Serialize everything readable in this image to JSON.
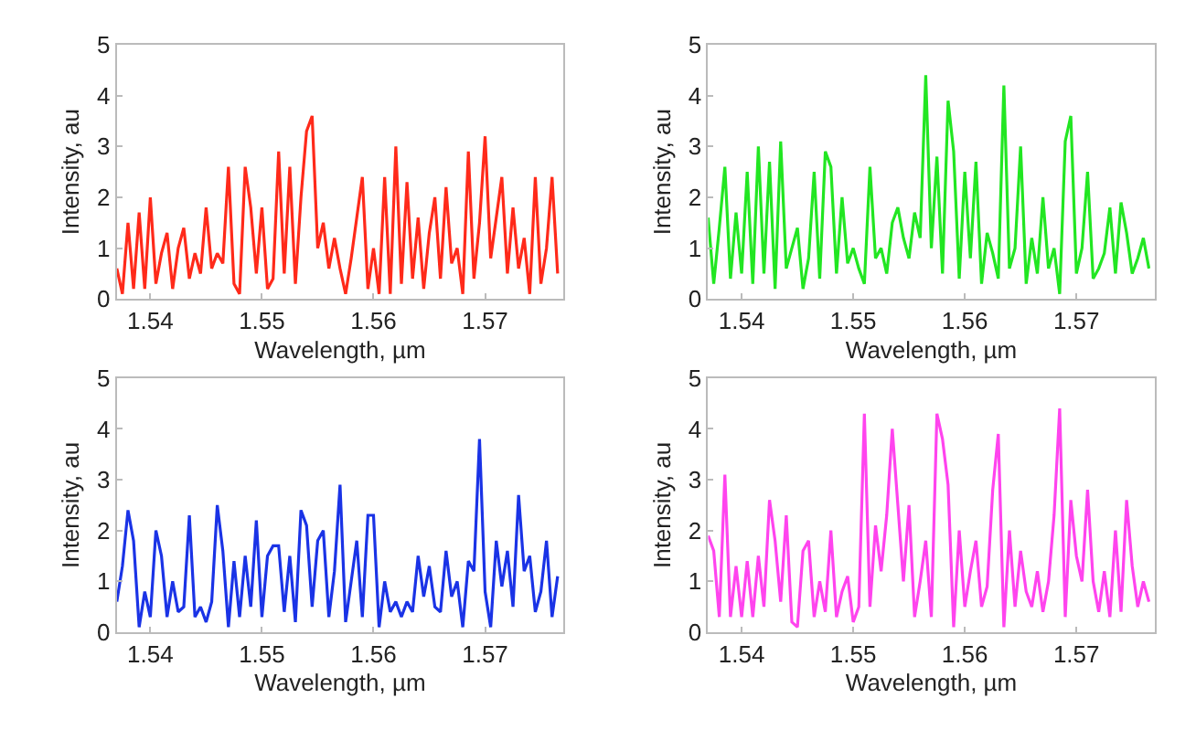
{
  "chart_data": [
    {
      "type": "line",
      "xlabel": "Wavelength, µm",
      "ylabel": "Intensity, au",
      "xlim": [
        1.537,
        1.577
      ],
      "xticks": [
        1.54,
        1.55,
        1.56,
        1.57
      ],
      "ylim": [
        0,
        5
      ],
      "yticks": [
        0,
        1,
        2,
        3,
        4,
        5
      ],
      "x": [
        1.537,
        1.5375,
        1.538,
        1.5385,
        1.539,
        1.5395,
        1.54,
        1.5405,
        1.541,
        1.5415,
        1.542,
        1.5425,
        1.543,
        1.5435,
        1.544,
        1.5445,
        1.545,
        1.5455,
        1.546,
        1.5465,
        1.547,
        1.5475,
        1.548,
        1.5485,
        1.549,
        1.5495,
        1.55,
        1.5505,
        1.551,
        1.5515,
        1.552,
        1.5525,
        1.553,
        1.5535,
        1.554,
        1.5545,
        1.555,
        1.5555,
        1.556,
        1.5565,
        1.557,
        1.5575,
        1.558,
        1.5585,
        1.559,
        1.5595,
        1.56,
        1.5605,
        1.561,
        1.5615,
        1.562,
        1.5625,
        1.563,
        1.5635,
        1.564,
        1.5645,
        1.565,
        1.5655,
        1.566,
        1.5665,
        1.567,
        1.5675,
        1.568,
        1.5685,
        1.569,
        1.5695,
        1.57,
        1.5705,
        1.571,
        1.5715,
        1.572,
        1.5725,
        1.573,
        1.5735,
        1.574,
        1.5745,
        1.575,
        1.5755,
        1.576,
        1.5765
      ],
      "series": [
        {
          "color": "#ff2a1a",
          "values": [
            0.6,
            0.1,
            1.5,
            0.2,
            1.7,
            0.2,
            2.0,
            0.3,
            0.9,
            1.3,
            0.2,
            1.0,
            1.4,
            0.4,
            0.9,
            0.5,
            1.8,
            0.6,
            0.9,
            0.7,
            2.6,
            0.3,
            0.1,
            2.6,
            1.8,
            0.5,
            1.8,
            0.2,
            0.4,
            2.9,
            0.5,
            2.6,
            0.3,
            2.0,
            3.3,
            3.6,
            1.0,
            1.5,
            0.6,
            1.2,
            0.6,
            0.1,
            0.8,
            1.6,
            2.4,
            0.2,
            1.0,
            0.1,
            2.4,
            0.1,
            3.0,
            0.3,
            2.3,
            0.4,
            1.6,
            0.2,
            1.3,
            2.0,
            0.4,
            2.2,
            0.7,
            1.0,
            0.1,
            2.9,
            0.4,
            1.5,
            3.2,
            0.8,
            1.6,
            2.4,
            0.5,
            1.8,
            0.6,
            1.2,
            0.1,
            2.4,
            0.3,
            1.0,
            2.4,
            0.5
          ]
        }
      ]
    },
    {
      "type": "line",
      "xlabel": "Wavelength, µm",
      "ylabel": "Intensity, au",
      "xlim": [
        1.537,
        1.577
      ],
      "xticks": [
        1.54,
        1.55,
        1.56,
        1.57
      ],
      "ylim": [
        0,
        5
      ],
      "yticks": [
        0,
        1,
        2,
        3,
        4,
        5
      ],
      "x": [
        1.537,
        1.5375,
        1.538,
        1.5385,
        1.539,
        1.5395,
        1.54,
        1.5405,
        1.541,
        1.5415,
        1.542,
        1.5425,
        1.543,
        1.5435,
        1.544,
        1.5445,
        1.545,
        1.5455,
        1.546,
        1.5465,
        1.547,
        1.5475,
        1.548,
        1.5485,
        1.549,
        1.5495,
        1.55,
        1.5505,
        1.551,
        1.5515,
        1.552,
        1.5525,
        1.553,
        1.5535,
        1.554,
        1.5545,
        1.555,
        1.5555,
        1.556,
        1.5565,
        1.557,
        1.5575,
        1.558,
        1.5585,
        1.559,
        1.5595,
        1.56,
        1.5605,
        1.561,
        1.5615,
        1.562,
        1.5625,
        1.563,
        1.5635,
        1.564,
        1.5645,
        1.565,
        1.5655,
        1.566,
        1.5665,
        1.567,
        1.5675,
        1.568,
        1.5685,
        1.569,
        1.5695,
        1.57,
        1.5705,
        1.571,
        1.5715,
        1.572,
        1.5725,
        1.573,
        1.5735,
        1.574,
        1.5745,
        1.575,
        1.5755,
        1.576,
        1.5765
      ],
      "series": [
        {
          "color": "#22e622",
          "values": [
            1.6,
            0.3,
            1.4,
            2.6,
            0.4,
            1.7,
            0.5,
            2.5,
            0.3,
            3.0,
            0.5,
            2.7,
            0.2,
            3.1,
            0.6,
            1.0,
            1.4,
            0.2,
            0.8,
            2.5,
            0.4,
            2.9,
            2.6,
            0.5,
            2.0,
            0.7,
            1.0,
            0.6,
            0.3,
            2.6,
            0.8,
            1.0,
            0.5,
            1.5,
            1.8,
            1.2,
            0.8,
            1.7,
            1.2,
            4.4,
            1.0,
            2.8,
            0.5,
            3.9,
            2.9,
            0.4,
            2.5,
            0.8,
            2.7,
            0.3,
            1.3,
            0.9,
            0.4,
            4.2,
            0.6,
            1.0,
            3.0,
            0.3,
            1.2,
            0.5,
            2.0,
            0.6,
            1.0,
            0.1,
            3.1,
            3.6,
            0.5,
            1.0,
            2.5,
            0.4,
            0.6,
            0.9,
            1.8,
            0.5,
            1.9,
            1.3,
            0.5,
            0.8,
            1.2,
            0.6
          ]
        }
      ]
    },
    {
      "type": "line",
      "xlabel": "Wavelength, µm",
      "ylabel": "Intensity, au",
      "xlim": [
        1.537,
        1.577
      ],
      "xticks": [
        1.54,
        1.55,
        1.56,
        1.57
      ],
      "ylim": [
        0,
        5
      ],
      "yticks": [
        0,
        1,
        2,
        3,
        4,
        5
      ],
      "x": [
        1.537,
        1.5375,
        1.538,
        1.5385,
        1.539,
        1.5395,
        1.54,
        1.5405,
        1.541,
        1.5415,
        1.542,
        1.5425,
        1.543,
        1.5435,
        1.544,
        1.5445,
        1.545,
        1.5455,
        1.546,
        1.5465,
        1.547,
        1.5475,
        1.548,
        1.5485,
        1.549,
        1.5495,
        1.55,
        1.5505,
        1.551,
        1.5515,
        1.552,
        1.5525,
        1.553,
        1.5535,
        1.554,
        1.5545,
        1.555,
        1.5555,
        1.556,
        1.5565,
        1.557,
        1.5575,
        1.558,
        1.5585,
        1.559,
        1.5595,
        1.56,
        1.5605,
        1.561,
        1.5615,
        1.562,
        1.5625,
        1.563,
        1.5635,
        1.564,
        1.5645,
        1.565,
        1.5655,
        1.566,
        1.5665,
        1.567,
        1.5675,
        1.568,
        1.5685,
        1.569,
        1.5695,
        1.57,
        1.5705,
        1.571,
        1.5715,
        1.572,
        1.5725,
        1.573,
        1.5735,
        1.574,
        1.5745,
        1.575,
        1.5755,
        1.576,
        1.5765
      ],
      "series": [
        {
          "color": "#1a33e6",
          "values": [
            0.6,
            1.3,
            2.4,
            1.8,
            0.1,
            0.8,
            0.3,
            2.0,
            1.5,
            0.3,
            1.0,
            0.4,
            0.5,
            2.3,
            0.3,
            0.5,
            0.2,
            0.6,
            2.5,
            1.6,
            0.1,
            1.4,
            0.3,
            1.5,
            0.5,
            2.2,
            0.3,
            1.5,
            1.7,
            1.7,
            0.4,
            1.5,
            0.2,
            2.4,
            2.1,
            0.5,
            1.8,
            2.0,
            0.3,
            1.2,
            2.9,
            0.2,
            1.0,
            1.8,
            0.3,
            2.3,
            2.3,
            0.1,
            1.0,
            0.4,
            0.6,
            0.3,
            0.6,
            0.4,
            1.5,
            0.7,
            1.3,
            0.5,
            0.4,
            1.6,
            0.7,
            1.0,
            0.1,
            1.4,
            1.2,
            3.8,
            0.8,
            0.1,
            1.8,
            0.9,
            1.6,
            0.5,
            2.7,
            1.2,
            1.5,
            0.4,
            0.8,
            1.8,
            0.3,
            1.1
          ]
        }
      ]
    },
    {
      "type": "line",
      "xlabel": "Wavelength, µm",
      "ylabel": "Intensity, au",
      "xlim": [
        1.537,
        1.577
      ],
      "xticks": [
        1.54,
        1.55,
        1.56,
        1.57
      ],
      "ylim": [
        0,
        5
      ],
      "yticks": [
        0,
        1,
        2,
        3,
        4,
        5
      ],
      "x": [
        1.537,
        1.5375,
        1.538,
        1.5385,
        1.539,
        1.5395,
        1.54,
        1.5405,
        1.541,
        1.5415,
        1.542,
        1.5425,
        1.543,
        1.5435,
        1.544,
        1.5445,
        1.545,
        1.5455,
        1.546,
        1.5465,
        1.547,
        1.5475,
        1.548,
        1.5485,
        1.549,
        1.5495,
        1.55,
        1.5505,
        1.551,
        1.5515,
        1.552,
        1.5525,
        1.553,
        1.5535,
        1.554,
        1.5545,
        1.555,
        1.5555,
        1.556,
        1.5565,
        1.557,
        1.5575,
        1.558,
        1.5585,
        1.559,
        1.5595,
        1.56,
        1.5605,
        1.561,
        1.5615,
        1.562,
        1.5625,
        1.563,
        1.5635,
        1.564,
        1.5645,
        1.565,
        1.5655,
        1.566,
        1.5665,
        1.567,
        1.5675,
        1.568,
        1.5685,
        1.569,
        1.5695,
        1.57,
        1.5705,
        1.571,
        1.5715,
        1.572,
        1.5725,
        1.573,
        1.5735,
        1.574,
        1.5745,
        1.575,
        1.5755,
        1.576,
        1.5765
      ],
      "series": [
        {
          "color": "#ff44ee",
          "values": [
            1.9,
            1.6,
            0.3,
            3.1,
            0.3,
            1.3,
            0.3,
            1.4,
            0.3,
            1.5,
            0.5,
            2.6,
            1.8,
            0.6,
            2.3,
            0.2,
            0.1,
            1.6,
            1.8,
            0.3,
            1.0,
            0.4,
            2.0,
            0.3,
            0.8,
            1.1,
            0.2,
            0.5,
            4.3,
            0.5,
            2.1,
            1.2,
            2.3,
            4.0,
            2.5,
            1.0,
            2.5,
            0.3,
            1.0,
            1.8,
            0.3,
            4.3,
            3.8,
            2.9,
            0.1,
            2.0,
            0.5,
            1.2,
            1.8,
            0.5,
            0.9,
            2.8,
            3.9,
            0.1,
            2.0,
            0.5,
            1.6,
            0.8,
            0.5,
            1.2,
            0.4,
            1.0,
            2.3,
            4.4,
            0.3,
            2.6,
            1.5,
            1.0,
            2.8,
            1.0,
            0.4,
            1.2,
            0.3,
            2.0,
            0.4,
            2.6,
            1.3,
            0.5,
            1.0,
            0.6
          ]
        }
      ]
    }
  ]
}
